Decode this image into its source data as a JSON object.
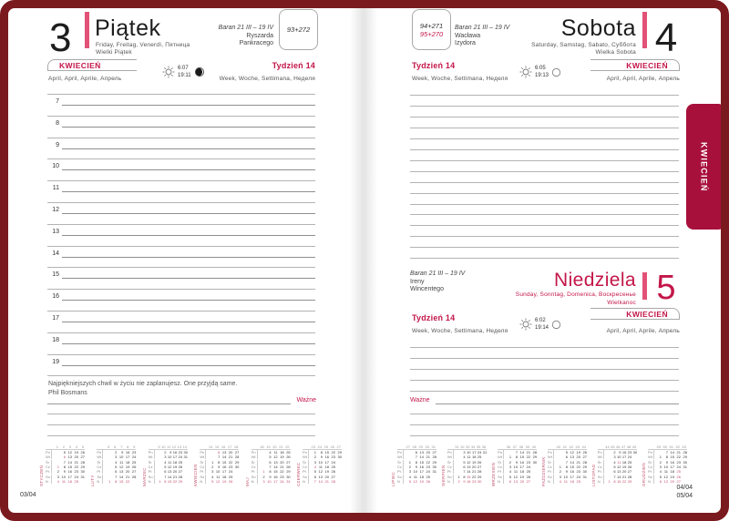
{
  "colors": {
    "frame": "#7a1a1e",
    "tab": "#a8103c",
    "accent_red": "#c31649",
    "pink_bar": "#e25277",
    "rule_gray": "#b3b3b3"
  },
  "tab": {
    "label": "KWIECIEŃ"
  },
  "left": {
    "day_number": "3",
    "day_name": "Piątek",
    "day_langs": "Friday, Freitag, Venerdì, Пятница",
    "holiday": "Wielki Piątek",
    "zodiac": "Baran 21 III – 19 IV",
    "nameday1": "Ryszarda",
    "nameday2": "Pankracego",
    "day_of_year": "93+272",
    "band": {
      "month": "KWIECIEŃ",
      "month_langs": "April, April, Aprile, Апрель",
      "week": "Tydzień 14",
      "week_langs": "Week, Woche, Settimana, Неделя",
      "sunrise": "6:07",
      "sunset": "19:11",
      "moon_icon": "moon-waxing-gibbous-icon",
      "sun_icon": "sun-icon"
    },
    "hours": [
      "7",
      "8",
      "9",
      "10",
      "11",
      "12",
      "13",
      "14",
      "15",
      "16",
      "17",
      "18",
      "19"
    ],
    "quote_text": "Najpiękniejszych chwil w życiu nie zaplanujesz. One przyjdą same.",
    "quote_author": "Phil Bosmans",
    "important": "Ważne",
    "page_no": "03/04"
  },
  "right": {
    "sat": {
      "day_number": "4",
      "day_name": "Sobota",
      "day_langs": "Saturday, Samstag, Sabato, Суббота",
      "holiday": "Wielka Sobota",
      "zodiac": "Baran 21 III – 19 IV",
      "nameday1": "Wacława",
      "nameday2": "Izydora",
      "day_of_year": "94+271",
      "day_of_year2": "95+270",
      "band": {
        "month": "KWIECIEŃ",
        "month_langs": "April, April, Aprile, Апрель",
        "week": "Tydzień 14",
        "week_langs": "Week, Woche, Settimana, Неделя",
        "sunrise": "6:05",
        "sunset": "19:13",
        "moon_icon": "moon-full-icon",
        "sun_icon": "sun-icon"
      }
    },
    "sun": {
      "day_number": "5",
      "day_name": "Niedziela",
      "day_langs": "Sunday, Sonntag, Domenica, Воскресенье",
      "holiday": "Wielkanoc",
      "zodiac": "Baran 21 III – 19 IV",
      "nameday1": "Ireny",
      "nameday2": "Wincentego",
      "band": {
        "month": "KWIECIEŃ",
        "month_langs": "April, April, Aprile, Апрель",
        "week": "Tydzień 14",
        "week_langs": "Week, Woche, Settimana, Неделя",
        "sunrise": "6:02",
        "sunset": "19:14",
        "moon_icon": "moon-full-icon",
        "sun_icon": "sun-icon"
      }
    },
    "important": "Ważne",
    "page_no1": "04/04",
    "page_no2": "05/04"
  },
  "minical": {
    "day_labels": [
      "Pn",
      "Wt",
      "Śr",
      "Cz",
      "Pt",
      "So",
      "N"
    ],
    "left_months": [
      {
        "name": "STYCZEŃ",
        "weeks": [
          "1",
          "2",
          "3",
          "4",
          "5"
        ],
        "rows": [
          [
            "",
            "5",
            "12",
            "19",
            "26"
          ],
          [
            "",
            "!6",
            "13",
            "20",
            "27"
          ],
          [
            "",
            "7",
            "14",
            "21",
            "28"
          ],
          [
            "!1",
            "8",
            "15",
            "22",
            "29"
          ],
          [
            "2",
            "9",
            "16",
            "23",
            "30"
          ],
          [
            "3",
            "10",
            "17",
            "24",
            "31"
          ],
          [
            "4",
            "11",
            "18",
            "25",
            ""
          ]
        ]
      },
      {
        "name": "LUTY",
        "weeks": [
          "5",
          "6",
          "7",
          "8",
          "9"
        ],
        "rows": [
          [
            "",
            "2",
            "9",
            "16",
            "23"
          ],
          [
            "",
            "3",
            "10",
            "17",
            "24"
          ],
          [
            "",
            "4",
            "11",
            "18",
            "25"
          ],
          [
            "",
            "5",
            "12",
            "19",
            "26"
          ],
          [
            "",
            "6",
            "13",
            "20",
            "27"
          ],
          [
            "",
            "7",
            "14",
            "21",
            "28"
          ],
          [
            "1",
            "8",
            "15",
            "22",
            ""
          ]
        ]
      },
      {
        "name": "MARZEC",
        "weeks": [
          "9",
          "10",
          "11",
          "12",
          "13",
          "14"
        ],
        "rows": [
          [
            "",
            "2",
            "9",
            "16",
            "23",
            "30"
          ],
          [
            "",
            "3",
            "10",
            "17",
            "24",
            "31"
          ],
          [
            "",
            "4",
            "11",
            "18",
            "25",
            ""
          ],
          [
            "",
            "5",
            "12",
            "19",
            "26",
            ""
          ],
          [
            "",
            "6",
            "13",
            "20",
            "27",
            ""
          ],
          [
            "",
            "7",
            "14",
            "21",
            "28",
            ""
          ],
          [
            "1",
            "8",
            "15",
            "22",
            "29",
            ""
          ]
        ]
      },
      {
        "name": "KWIECIEŃ",
        "weeks": [
          "14",
          "15",
          "16",
          "17",
          "18"
        ],
        "rows": [
          [
            "",
            "!6",
            "13",
            "20",
            "27"
          ],
          [
            "",
            "7",
            "14",
            "21",
            "28"
          ],
          [
            "1",
            "8",
            "15",
            "22",
            "29"
          ],
          [
            "2",
            "9",
            "16",
            "23",
            "30"
          ],
          [
            "3",
            "10",
            "17",
            "24",
            ""
          ],
          [
            "4",
            "11",
            "18",
            "25",
            ""
          ],
          [
            "5",
            "12",
            "19",
            "26",
            ""
          ]
        ]
      },
      {
        "name": "MAJ",
        "weeks": [
          "18",
          "19",
          "20",
          "21",
          "22"
        ],
        "rows": [
          [
            "",
            "4",
            "11",
            "18",
            "25"
          ],
          [
            "",
            "5",
            "12",
            "19",
            "26"
          ],
          [
            "",
            "6",
            "13",
            "20",
            "27"
          ],
          [
            "",
            "7",
            "14",
            "21",
            "28"
          ],
          [
            "!1",
            "8",
            "15",
            "22",
            "29"
          ],
          [
            "2",
            "9",
            "16",
            "23",
            "30"
          ],
          [
            "!3",
            "10",
            "17",
            "24",
            "31"
          ]
        ]
      },
      {
        "name": "CZERWIEC",
        "weeks": [
          "23",
          "24",
          "25",
          "26",
          "27"
        ],
        "rows": [
          [
            "1",
            "8",
            "15",
            "22",
            "29"
          ],
          [
            "2",
            "9",
            "16",
            "23",
            "30"
          ],
          [
            "3",
            "10",
            "17",
            "24",
            ""
          ],
          [
            "!4",
            "11",
            "18",
            "25",
            ""
          ],
          [
            "5",
            "12",
            "19",
            "26",
            ""
          ],
          [
            "6",
            "13",
            "20",
            "27",
            ""
          ],
          [
            "7",
            "14",
            "21",
            "28",
            ""
          ]
        ]
      }
    ],
    "right_months": [
      {
        "name": "LIPIEC",
        "weeks": [
          "27",
          "28",
          "29",
          "30",
          "31"
        ],
        "rows": [
          [
            "",
            "6",
            "13",
            "20",
            "27"
          ],
          [
            "",
            "7",
            "14",
            "21",
            "28"
          ],
          [
            "1",
            "8",
            "15",
            "22",
            "29"
          ],
          [
            "2",
            "9",
            "16",
            "23",
            "30"
          ],
          [
            "3",
            "10",
            "17",
            "24",
            "31"
          ],
          [
            "4",
            "11",
            "18",
            "25",
            ""
          ],
          [
            "5",
            "12",
            "19",
            "26",
            ""
          ]
        ]
      },
      {
        "name": "SIERPIEŃ",
        "weeks": [
          "31",
          "32",
          "33",
          "34",
          "35",
          "36"
        ],
        "rows": [
          [
            "",
            "3",
            "10",
            "17",
            "24",
            "31"
          ],
          [
            "",
            "4",
            "11",
            "18",
            "25",
            ""
          ],
          [
            "",
            "5",
            "12",
            "19",
            "26",
            ""
          ],
          [
            "",
            "6",
            "13",
            "20",
            "27",
            ""
          ],
          [
            "",
            "7",
            "14",
            "21",
            "28",
            ""
          ],
          [
            "1",
            "8",
            "!15",
            "22",
            "29",
            ""
          ],
          [
            "2",
            "9",
            "16",
            "23",
            "30",
            ""
          ]
        ]
      },
      {
        "name": "WRZESIEŃ",
        "weeks": [
          "36",
          "37",
          "38",
          "39",
          "40"
        ],
        "rows": [
          [
            "",
            "7",
            "14",
            "21",
            "28"
          ],
          [
            "1",
            "8",
            "15",
            "22",
            "29"
          ],
          [
            "2",
            "9",
            "16",
            "23",
            "30"
          ],
          [
            "3",
            "10",
            "17",
            "24",
            ""
          ],
          [
            "4",
            "11",
            "18",
            "25",
            ""
          ],
          [
            "5",
            "12",
            "19",
            "26",
            ""
          ],
          [
            "6",
            "13",
            "20",
            "27",
            ""
          ]
        ]
      },
      {
        "name": "PAŹDZIERNIK",
        "weeks": [
          "40",
          "41",
          "42",
          "43",
          "44"
        ],
        "rows": [
          [
            "",
            "5",
            "12",
            "19",
            "26"
          ],
          [
            "",
            "6",
            "13",
            "20",
            "27"
          ],
          [
            "",
            "7",
            "14",
            "21",
            "28"
          ],
          [
            "1",
            "8",
            "15",
            "22",
            "29"
          ],
          [
            "2",
            "9",
            "16",
            "23",
            "30"
          ],
          [
            "3",
            "10",
            "17",
            "24",
            "31"
          ],
          [
            "4",
            "11",
            "18",
            "25",
            ""
          ]
        ]
      },
      {
        "name": "LISTOPAD",
        "weeks": [
          "44",
          "45",
          "46",
          "47",
          "48",
          "49"
        ],
        "rows": [
          [
            "",
            "2",
            "9",
            "16",
            "23",
            "30"
          ],
          [
            "",
            "3",
            "10",
            "17",
            "24",
            ""
          ],
          [
            "",
            "4",
            "!11",
            "18",
            "25",
            ""
          ],
          [
            "",
            "5",
            "12",
            "19",
            "26",
            ""
          ],
          [
            "",
            "6",
            "13",
            "20",
            "27",
            ""
          ],
          [
            "",
            "7",
            "14",
            "21",
            "28",
            ""
          ],
          [
            "1",
            "8",
            "15",
            "22",
            "29",
            ""
          ]
        ]
      },
      {
        "name": "GRUDZIEŃ",
        "weeks": [
          "49",
          "50",
          "51",
          "52",
          "53"
        ],
        "rows": [
          [
            "",
            "7",
            "14",
            "21",
            "28"
          ],
          [
            "1",
            "8",
            "15",
            "22",
            "29"
          ],
          [
            "2",
            "9",
            "16",
            "23",
            "30"
          ],
          [
            "3",
            "10",
            "17",
            "24",
            "31"
          ],
          [
            "4",
            "11",
            "18",
            "!25",
            ""
          ],
          [
            "5",
            "12",
            "19",
            "!26",
            ""
          ],
          [
            "6",
            "13",
            "20",
            "27",
            ""
          ]
        ]
      }
    ]
  }
}
